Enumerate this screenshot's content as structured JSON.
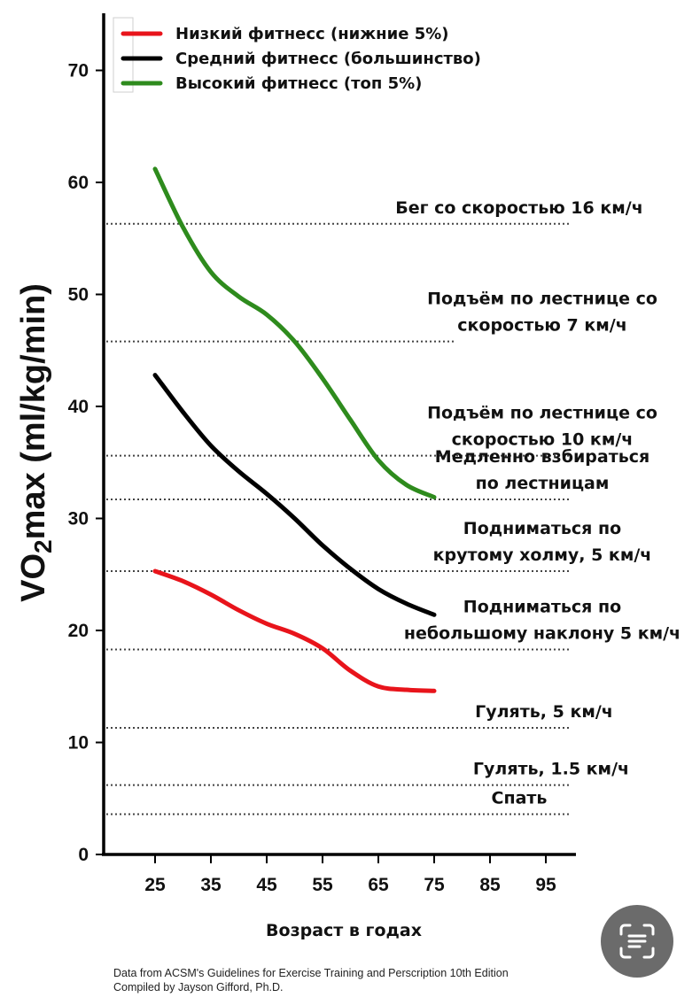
{
  "chart_data": {
    "type": "line",
    "xlabel": "Возраст в годах",
    "ylabel_main": "VO",
    "ylabel_sub": "2",
    "ylabel_rest": "max (ml/kg/min)",
    "x_ticks": [
      "25",
      "35",
      "45",
      "55",
      "65",
      "75",
      "85",
      "95"
    ],
    "y_ticks": [
      "0",
      "10",
      "20",
      "30",
      "40",
      "50",
      "60",
      "70"
    ],
    "xlim": [
      15,
      100
    ],
    "ylim": [
      0,
      73
    ],
    "legend_position": "top-left",
    "series": [
      {
        "name": "Низкий фитнесс (нижние 5%)",
        "color": "#e8141b",
        "points": [
          [
            25,
            25.3
          ],
          [
            30,
            24.4
          ],
          [
            35,
            23.2
          ],
          [
            40,
            21.8
          ],
          [
            45,
            20.6
          ],
          [
            50,
            19.7
          ],
          [
            55,
            18.4
          ],
          [
            60,
            16.4
          ],
          [
            65,
            15.0
          ],
          [
            70,
            14.7
          ],
          [
            75,
            14.6
          ]
        ]
      },
      {
        "name": "Средний фитнесс (большинство)",
        "color": "#000000",
        "points": [
          [
            25,
            42.8
          ],
          [
            30,
            39.5
          ],
          [
            35,
            36.5
          ],
          [
            40,
            34.2
          ],
          [
            45,
            32.2
          ],
          [
            50,
            30.0
          ],
          [
            55,
            27.6
          ],
          [
            60,
            25.5
          ],
          [
            65,
            23.7
          ],
          [
            70,
            22.4
          ],
          [
            75,
            21.4
          ]
        ]
      },
      {
        "name": "Высокий фитнесс (топ 5%)",
        "color": "#2e8b1d",
        "points": [
          [
            25,
            61.2
          ],
          [
            30,
            56.0
          ],
          [
            35,
            52.0
          ],
          [
            40,
            49.8
          ],
          [
            45,
            48.2
          ],
          [
            50,
            45.8
          ],
          [
            55,
            42.5
          ],
          [
            60,
            38.8
          ],
          [
            65,
            35.2
          ],
          [
            70,
            33.0
          ],
          [
            75,
            31.9
          ]
        ]
      }
    ],
    "reference_lines": [
      {
        "value": 56.3,
        "lines": [
          "Бег со скоростью 16 км/ч"
        ]
      },
      {
        "value": 45.8,
        "lines": [
          "Подъём по лестнице со",
          "скоростью 7 км/ч"
        ]
      },
      {
        "value": 35.6,
        "lines": [
          "Подъём по лестнице со",
          "скоростью 10 км/ч"
        ]
      },
      {
        "value": 31.7,
        "lines": [
          "Медленно взбираться",
          "по лестницам"
        ]
      },
      {
        "value": 25.3,
        "lines": [
          "Подниматься по",
          "крутому холму, 5 км/ч"
        ]
      },
      {
        "value": 18.3,
        "lines": [
          "Подниматься по",
          "небольшому наклону 5 км/ч"
        ]
      },
      {
        "value": 11.3,
        "lines": [
          "Гулять, 5 км/ч"
        ]
      },
      {
        "value": 6.2,
        "lines": [
          "Гулять, 1.5 км/ч"
        ]
      },
      {
        "value": 3.6,
        "lines": [
          "Спать"
        ]
      }
    ],
    "source_lines": [
      "Data from ACSM's Guidelines for Exercise Training and Perscription 10th Edition",
      "Compiled by Jayson Gifford, Ph.D."
    ]
  },
  "ui": {
    "scan_button_icon": "text-scan-icon"
  }
}
